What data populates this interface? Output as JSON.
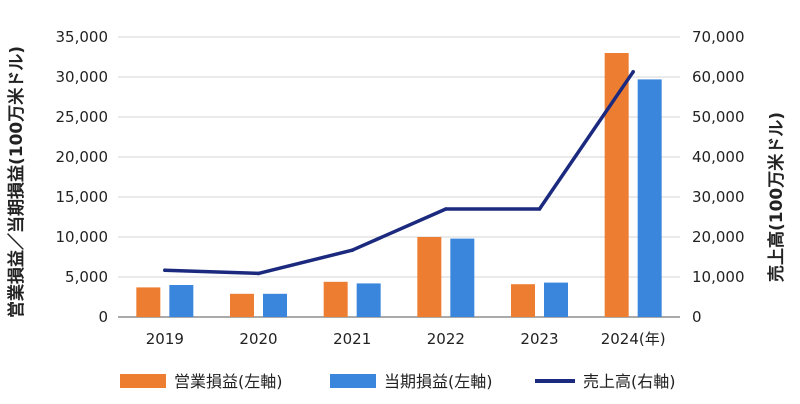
{
  "chart_data": {
    "type": "bar",
    "categories": [
      "2019",
      "2020",
      "2021",
      "2022",
      "2023",
      "2024"
    ],
    "category_suffix_last": "(年)",
    "series": [
      {
        "name": "営業損益(左軸)",
        "kind": "bar",
        "axis": "left",
        "color": "#ED7D31",
        "values": [
          3700,
          2900,
          4400,
          10000,
          4100,
          33000
        ]
      },
      {
        "name": "当期損益(左軸)",
        "kind": "bar",
        "axis": "left",
        "color": "#3A86DD",
        "values": [
          4000,
          2900,
          4200,
          9800,
          4300,
          29700
        ]
      },
      {
        "name": "売上高(右軸)",
        "kind": "line",
        "axis": "right",
        "color": "#1B2A7E",
        "values": [
          11700,
          10900,
          16700,
          27000,
          27000,
          61300
        ]
      }
    ],
    "left_axis": {
      "label": "営業損益／当期損益(100万米ドル)",
      "ylim": [
        0,
        35000
      ],
      "ticks": [
        "0",
        "5,000",
        "10,000",
        "15,000",
        "20,000",
        "25,000",
        "30,000",
        "35,000"
      ]
    },
    "right_axis": {
      "label": "売上高(100万米ドル)",
      "ylim": [
        0,
        70000
      ],
      "ticks": [
        "0",
        "10,000",
        "20,000",
        "30,000",
        "40,000",
        "50,000",
        "60,000",
        "70,000"
      ]
    },
    "grid": true,
    "legend_position": "bottom"
  }
}
